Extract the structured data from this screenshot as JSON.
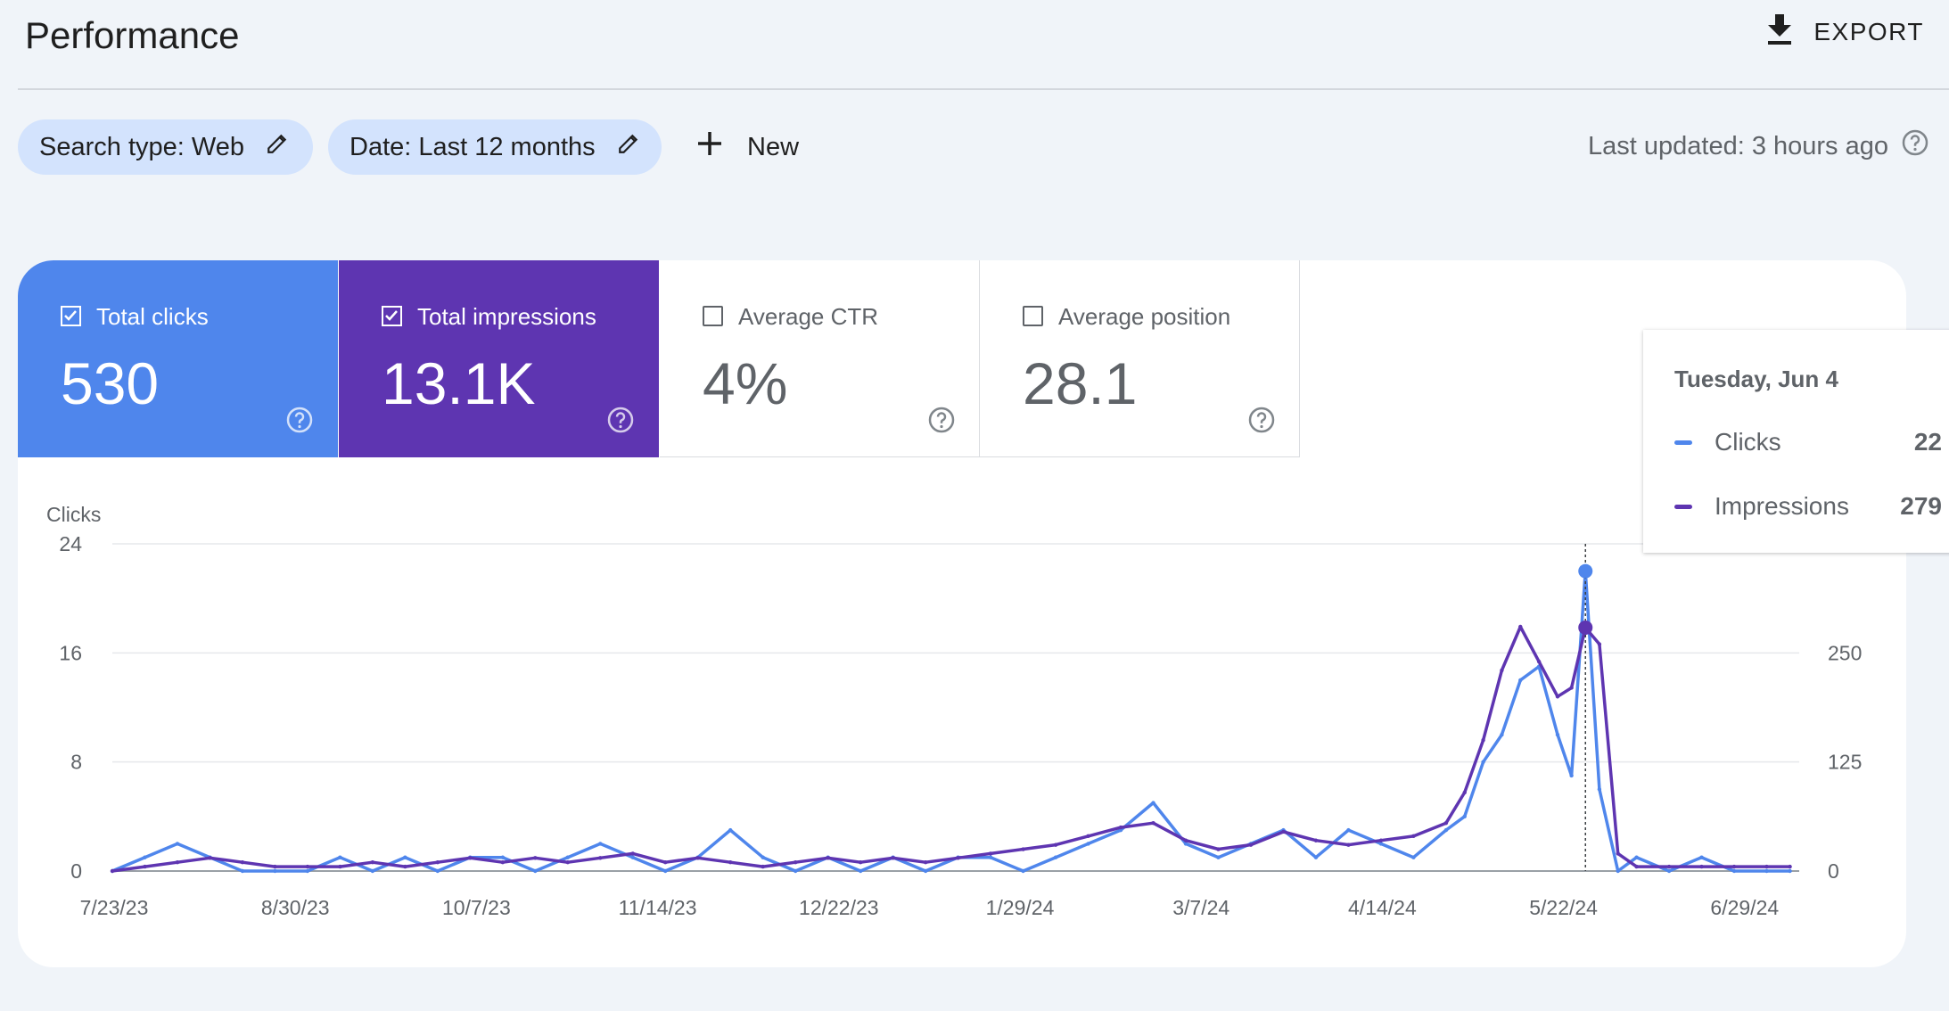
{
  "header": {
    "title": "Performance",
    "export_label": "EXPORT",
    "export_icon": "download-icon"
  },
  "filters": {
    "search_type": "Search type: Web",
    "date": "Date: Last 12 months",
    "new_label": "New",
    "last_updated": "Last updated: 3 hours ago",
    "edit_icon": "pencil-icon",
    "help_icon": "help-icon"
  },
  "metrics": [
    {
      "label": "Total clicks",
      "value": "530",
      "checked": true,
      "color": "#4f86ec"
    },
    {
      "label": "Total impressions",
      "value": "13.1K",
      "checked": true,
      "color": "#5e35b1"
    },
    {
      "label": "Average CTR",
      "value": "4%",
      "checked": false
    },
    {
      "label": "Average position",
      "value": "28.1",
      "checked": false
    }
  ],
  "tooltip": {
    "date": "Tuesday, Jun 4",
    "rows": [
      {
        "name": "Clicks",
        "value": "22",
        "color": "#4f86ec"
      },
      {
        "name": "Impressions",
        "value": "279",
        "color": "#5e35b1"
      }
    ]
  },
  "chart_data": {
    "type": "line",
    "ylabel": "Clicks",
    "y2label": "Impressions",
    "ylim": [
      0,
      24
    ],
    "y2lim": [
      0,
      375
    ],
    "yticks": [
      "0",
      "8",
      "16",
      "24"
    ],
    "y2ticks": [
      "0",
      "125",
      "250",
      "375"
    ],
    "x_tick_labels": [
      "7/23/23",
      "8/30/23",
      "10/7/23",
      "11/14/23",
      "12/22/23",
      "1/29/24",
      "3/7/24",
      "4/14/24",
      "5/22/24",
      "6/29/24"
    ],
    "x": [
      "2023-07-23",
      "2023-07-30",
      "2023-08-06",
      "2023-08-13",
      "2023-08-20",
      "2023-08-27",
      "2023-09-03",
      "2023-09-10",
      "2023-09-17",
      "2023-09-24",
      "2023-10-01",
      "2023-10-08",
      "2023-10-15",
      "2023-10-22",
      "2023-10-29",
      "2023-11-05",
      "2023-11-12",
      "2023-11-19",
      "2023-11-26",
      "2023-12-03",
      "2023-12-10",
      "2023-12-17",
      "2023-12-24",
      "2023-12-31",
      "2024-01-07",
      "2024-01-14",
      "2024-01-21",
      "2024-01-28",
      "2024-02-04",
      "2024-02-11",
      "2024-02-18",
      "2024-02-25",
      "2024-03-03",
      "2024-03-10",
      "2024-03-17",
      "2024-03-24",
      "2024-03-31",
      "2024-04-07",
      "2024-04-14",
      "2024-04-21",
      "2024-04-28",
      "2024-05-05",
      "2024-05-09",
      "2024-05-13",
      "2024-05-17",
      "2024-05-21",
      "2024-05-25",
      "2024-05-29",
      "2024-06-01",
      "2024-06-04",
      "2024-06-07",
      "2024-06-11",
      "2024-06-15",
      "2024-06-22",
      "2024-06-29",
      "2024-07-06",
      "2024-07-13",
      "2024-07-18"
    ],
    "series": [
      {
        "name": "Clicks",
        "color": "#4f86ec",
        "values": [
          0,
          1,
          2,
          1,
          0,
          0,
          0,
          1,
          0,
          1,
          0,
          1,
          1,
          0,
          1,
          2,
          1,
          0,
          1,
          3,
          1,
          0,
          1,
          0,
          1,
          0,
          1,
          1,
          0,
          1,
          2,
          3,
          5,
          2,
          1,
          2,
          3,
          1,
          3,
          2,
          1,
          3,
          4,
          8,
          10,
          14,
          15,
          10,
          7,
          22,
          6,
          0,
          1,
          0,
          1,
          0,
          0,
          0
        ]
      },
      {
        "name": "Impressions",
        "color": "#5e35b1",
        "values": [
          0,
          5,
          10,
          15,
          10,
          5,
          5,
          5,
          10,
          5,
          10,
          15,
          10,
          15,
          10,
          15,
          20,
          10,
          15,
          10,
          5,
          10,
          15,
          10,
          15,
          10,
          15,
          20,
          25,
          30,
          40,
          50,
          55,
          35,
          25,
          30,
          45,
          35,
          30,
          35,
          40,
          55,
          90,
          150,
          230,
          280,
          240,
          200,
          210,
          279,
          260,
          20,
          5,
          5,
          5,
          5,
          5,
          5
        ]
      }
    ]
  }
}
